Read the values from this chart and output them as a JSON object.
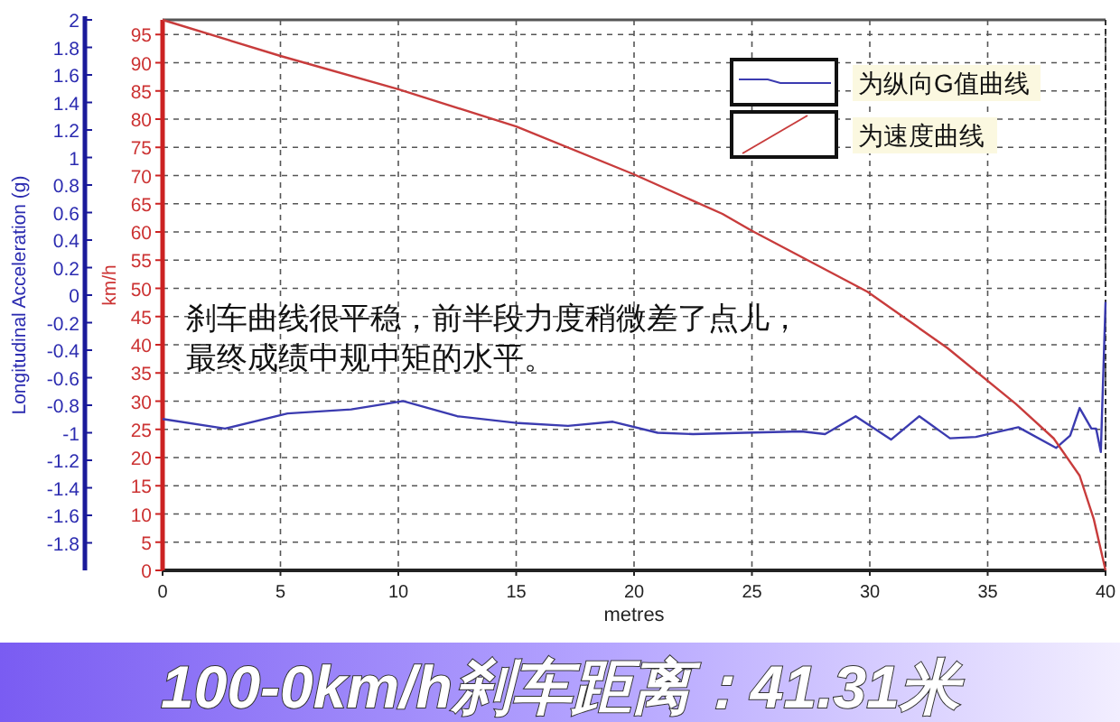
{
  "chart_data": {
    "type": "line",
    "xlabel": "metres",
    "ylabel": "Longitudinal Acceleration (g)",
    "y2label": "km/h",
    "xlim": [
      0,
      40
    ],
    "xticks": [
      0,
      5,
      10,
      15,
      20,
      25,
      30,
      35,
      40
    ],
    "ylim": [
      -2,
      2
    ],
    "yticks": [
      -1.8,
      -1.6,
      -1.4,
      -1.2,
      -1,
      -0.8,
      -0.6,
      -0.4,
      -0.2,
      0,
      0.2,
      0.4,
      0.6,
      0.8,
      1,
      1.2,
      1.4,
      1.6,
      1.8,
      2
    ],
    "y2lim": [
      0,
      97.6
    ],
    "y2ticks": [
      0,
      5,
      10,
      15,
      20,
      25,
      30,
      35,
      40,
      45,
      50,
      55,
      60,
      65,
      70,
      75,
      80,
      85,
      90,
      95
    ],
    "grid": true,
    "legend": "top right",
    "line_style": "solid",
    "series": [
      {
        "name": "为纵向G值曲线",
        "color": "#3b3bb0",
        "axis": "y",
        "x": [
          0,
          2.65,
          5.3,
          8,
          10.2,
          12.5,
          15.1,
          17.2,
          19.1,
          21,
          22.5,
          24.7,
          27.1,
          28.1,
          29.4,
          30.9,
          32.1,
          33.4,
          34.5,
          36.3,
          37.9,
          38.5,
          38.9,
          39.4,
          39.6,
          39.8,
          40
        ],
        "values": [
          -0.9,
          -0.97,
          -0.86,
          -0.83,
          -0.77,
          -0.88,
          -0.93,
          -0.95,
          -0.92,
          -1.0,
          -1.01,
          -1.0,
          -0.99,
          -1.01,
          -0.88,
          -1.05,
          -0.88,
          -1.04,
          -1.03,
          -0.96,
          -1.11,
          -1.02,
          -0.82,
          -0.97,
          -0.97,
          -1.14,
          -0.05
        ]
      },
      {
        "name": "为速度曲线",
        "color": "#c83c3c",
        "axis": "y2",
        "x": [
          0,
          5,
          10,
          15,
          20,
          23.75,
          25,
          29.9,
          33.3,
          36.2,
          37.8,
          38.9,
          39.5,
          40
        ],
        "values": [
          97.6,
          91.2,
          85.3,
          78.7,
          70.2,
          63.2,
          60.2,
          49.4,
          39.4,
          29.5,
          23.4,
          16.8,
          9.1,
          0
        ]
      }
    ],
    "annotations": [
      "刹车曲线很平稳，前半段力度稍微差了点儿，",
      "最终成绩中规中矩的水平。",
      "100-0km/h刹车距离：41.31米"
    ]
  }
}
